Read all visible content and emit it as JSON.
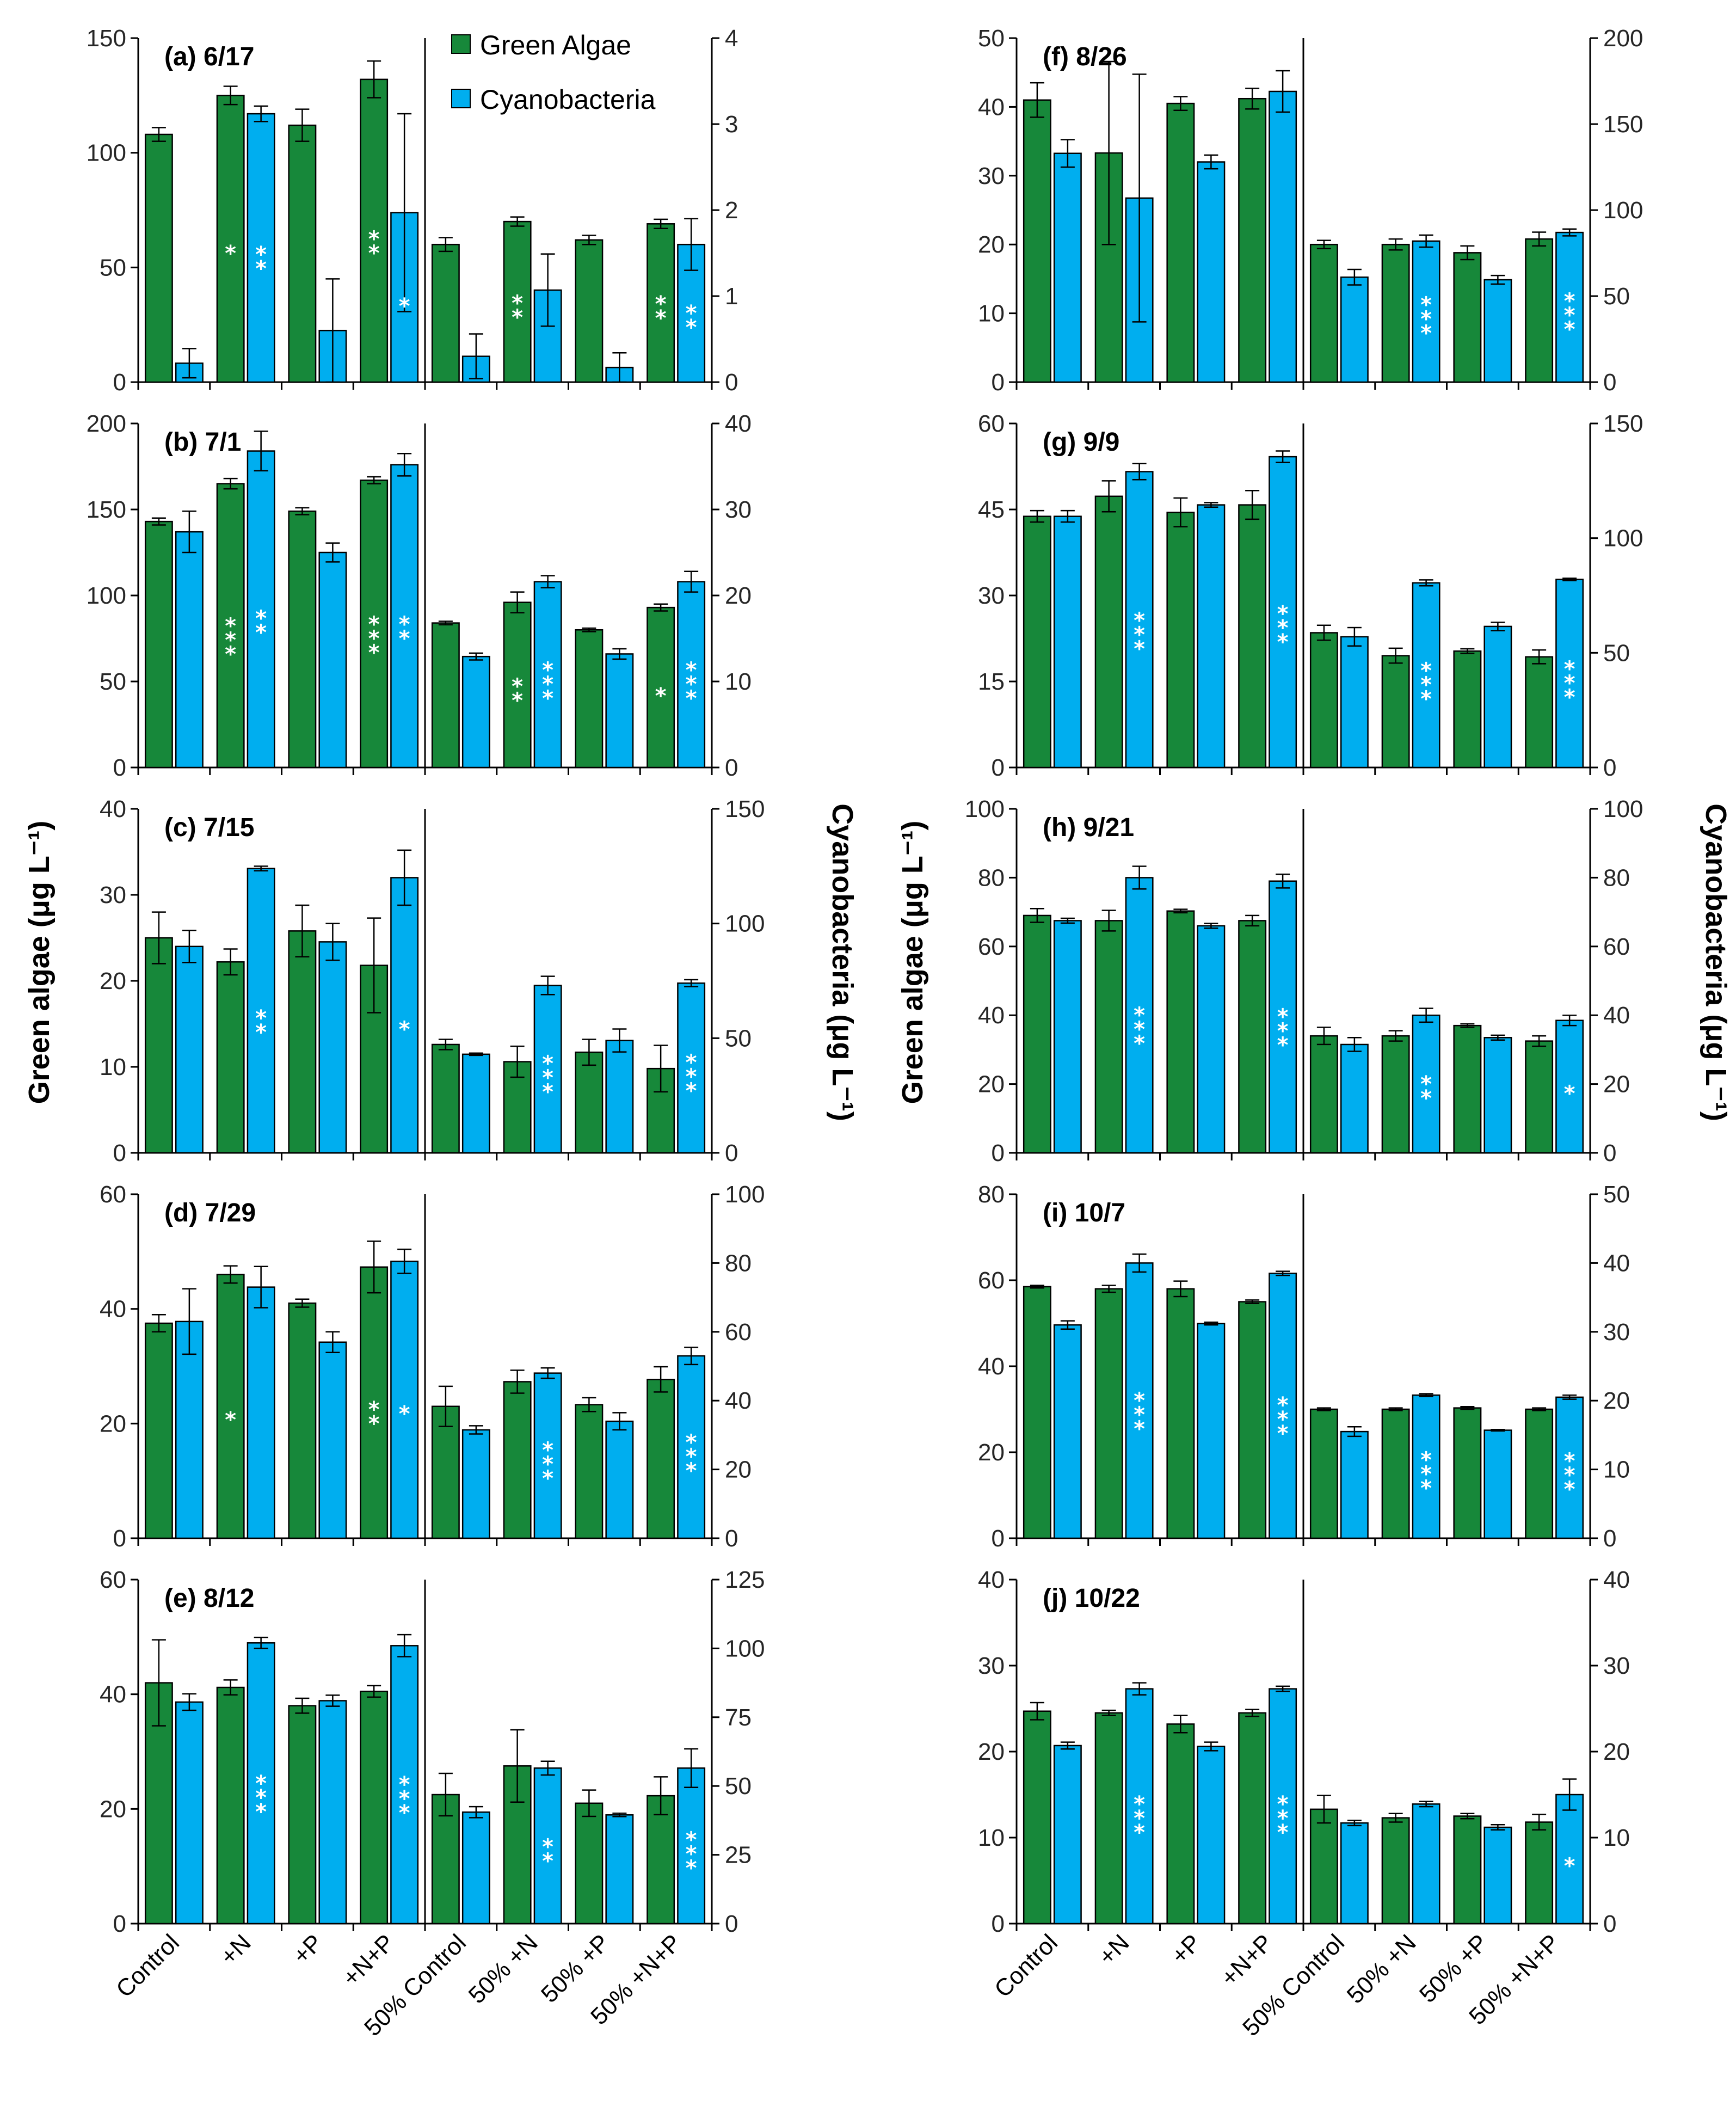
{
  "colors": {
    "green_algae": "#17883a",
    "cyanobacteria": "#00aeef",
    "axis": "#000000",
    "star": "#ffffff"
  },
  "labels": {
    "ylabel_left": "Green algae (μg L⁻¹)",
    "ylabel_right": "Cyanobacteria (μg L⁻¹)"
  },
  "legend": {
    "green": "Green Algae",
    "cyan": "Cyanobacteria"
  },
  "categories": [
    "Control",
    "+N",
    "+P",
    "+N+P",
    "50% Control",
    "50% +N",
    "50% +P",
    "50% +N+P"
  ],
  "chart_data": [
    {
      "type": "bar",
      "title": "(a) 6/17",
      "ylim_left": [
        0,
        150
      ],
      "yticks_left": [
        0,
        50,
        100,
        150
      ],
      "ylim_right": [
        0,
        4
      ],
      "yticks_right": [
        0,
        1,
        2,
        3,
        4
      ],
      "series": [
        {
          "name": "Green Algae",
          "axis": "left",
          "values": [
            108,
            125,
            112,
            132,
            60,
            70,
            62,
            69
          ],
          "errors": [
            3,
            4,
            7,
            8,
            3,
            2,
            2,
            2
          ],
          "stars": [
            "",
            "*",
            "",
            "**",
            "",
            "**",
            "",
            "**"
          ]
        },
        {
          "name": "Cyanobacteria",
          "axis": "right",
          "values": [
            0.22,
            3.12,
            0.6,
            1.97,
            0.3,
            1.07,
            0.17,
            1.6
          ],
          "errors": [
            0.17,
            0.09,
            0.6,
            1.15,
            0.26,
            0.42,
            0.17,
            0.3
          ],
          "stars": [
            "",
            "**",
            "",
            "*",
            "",
            "",
            "",
            "**"
          ]
        }
      ]
    },
    {
      "type": "bar",
      "title": "(b) 7/1",
      "ylim_left": [
        0,
        200
      ],
      "yticks_left": [
        0,
        50,
        100,
        150,
        200
      ],
      "ylim_right": [
        0,
        40
      ],
      "yticks_right": [
        0,
        10,
        20,
        30,
        40
      ],
      "series": [
        {
          "name": "Green Algae",
          "axis": "left",
          "values": [
            143,
            165,
            149,
            167,
            84,
            96,
            80,
            93
          ],
          "errors": [
            2,
            3,
            2,
            2,
            1,
            6,
            1,
            2
          ],
          "stars": [
            "",
            "***",
            "",
            "***",
            "",
            "**",
            "",
            "*"
          ]
        },
        {
          "name": "Cyanobacteria",
          "axis": "right",
          "values": [
            27.4,
            36.8,
            25,
            35.2,
            12.9,
            21.6,
            13.2,
            21.6
          ],
          "errors": [
            2.4,
            2.3,
            1.1,
            1.3,
            0.4,
            0.7,
            0.6,
            1.2
          ],
          "stars": [
            "",
            "**",
            "",
            "**",
            "",
            "***",
            "",
            "***"
          ]
        }
      ]
    },
    {
      "type": "bar",
      "title": "(c) 7/15",
      "ylim_left": [
        0,
        40
      ],
      "yticks_left": [
        0,
        10,
        20,
        30,
        40
      ],
      "ylim_right": [
        0,
        150
      ],
      "yticks_right": [
        0,
        50,
        100,
        150
      ],
      "series": [
        {
          "name": "Green Algae",
          "axis": "left",
          "values": [
            25,
            22.2,
            25.8,
            21.8,
            12.6,
            10.6,
            11.7,
            9.8
          ],
          "errors": [
            3,
            1.5,
            3,
            5.5,
            0.6,
            1.8,
            1.5,
            2.7
          ],
          "stars": [
            "",
            "",
            "",
            "",
            "",
            "",
            "",
            ""
          ]
        },
        {
          "name": "Cyanobacteria",
          "axis": "right",
          "values": [
            90,
            124,
            92,
            120,
            43,
            73,
            49,
            74
          ],
          "errors": [
            7,
            1,
            8,
            12,
            0.5,
            4,
            5,
            1.5
          ],
          "stars": [
            "",
            "**",
            "",
            "*",
            "",
            "***",
            "",
            "***"
          ]
        }
      ]
    },
    {
      "type": "bar",
      "title": "(d) 7/29",
      "ylim_left": [
        0,
        60
      ],
      "yticks_left": [
        0,
        20,
        40,
        60
      ],
      "ylim_right": [
        0,
        100
      ],
      "yticks_right": [
        0,
        20,
        40,
        60,
        80,
        100
      ],
      "series": [
        {
          "name": "Green Algae",
          "axis": "left",
          "values": [
            37.5,
            46,
            41,
            47.3,
            23,
            27.3,
            23.3,
            27.7
          ],
          "errors": [
            1.5,
            1.5,
            0.7,
            4.5,
            3.5,
            2,
            1.2,
            2.2
          ],
          "stars": [
            "",
            "*",
            "",
            "**",
            "",
            "",
            "",
            ""
          ]
        },
        {
          "name": "Cyanobacteria",
          "axis": "right",
          "values": [
            63,
            73,
            57,
            80.5,
            31.5,
            48,
            34,
            53
          ],
          "errors": [
            9.5,
            6,
            3,
            3.5,
            1.2,
            1.5,
            2.5,
            2.5
          ],
          "stars": [
            "",
            "",
            "",
            "*",
            "",
            "***",
            "",
            "***"
          ]
        }
      ]
    },
    {
      "type": "bar",
      "title": "(e) 8/12",
      "ylim_left": [
        0,
        60
      ],
      "yticks_left": [
        0,
        20,
        40,
        60
      ],
      "ylim_right": [
        0,
        125
      ],
      "yticks_right": [
        0,
        25,
        50,
        75,
        100,
        125
      ],
      "series": [
        {
          "name": "Green Algae",
          "axis": "left",
          "values": [
            42,
            41.2,
            38,
            40.5,
            22.5,
            27.5,
            21,
            22.3
          ],
          "errors": [
            7.5,
            1.3,
            1.3,
            1,
            3.7,
            6.3,
            2.3,
            3.3
          ],
          "stars": [
            "",
            "",
            "",
            "",
            "",
            "",
            "",
            ""
          ]
        },
        {
          "name": "Cyanobacteria",
          "axis": "right",
          "values": [
            80.5,
            102,
            81,
            101,
            40.5,
            56.5,
            39.5,
            56.5
          ],
          "errors": [
            3,
            2,
            2,
            4,
            2,
            2.5,
            0.6,
            7
          ],
          "stars": [
            "",
            "***",
            "",
            "***",
            "",
            "**",
            "",
            "***"
          ]
        }
      ]
    },
    {
      "type": "bar",
      "title": "(f) 8/26",
      "ylim_left": [
        0,
        50
      ],
      "yticks_left": [
        0,
        10,
        20,
        30,
        40,
        50
      ],
      "ylim_right": [
        0,
        200
      ],
      "yticks_right": [
        0,
        50,
        100,
        150,
        200
      ],
      "series": [
        {
          "name": "Green Algae",
          "axis": "left",
          "values": [
            41,
            33.3,
            40.5,
            41.2,
            20,
            20,
            18.8,
            20.8
          ],
          "errors": [
            2.5,
            13.3,
            1,
            1.5,
            0.6,
            0.8,
            1,
            1
          ],
          "stars": [
            "",
            "",
            "",
            "",
            "",
            "",
            "",
            ""
          ]
        },
        {
          "name": "Cyanobacteria",
          "axis": "right",
          "values": [
            133,
            107,
            128,
            169,
            61,
            82,
            59.5,
            87
          ],
          "errors": [
            8,
            72,
            4,
            12,
            4.5,
            3.5,
            2.5,
            2
          ],
          "stars": [
            "",
            "",
            "",
            "",
            "",
            "***",
            "",
            "***"
          ]
        }
      ]
    },
    {
      "type": "bar",
      "title": "(g) 9/9",
      "ylim_left": [
        0,
        60
      ],
      "yticks_left": [
        0,
        15,
        30,
        45,
        60
      ],
      "ylim_right": [
        0,
        150
      ],
      "yticks_right": [
        0,
        50,
        100,
        150
      ],
      "series": [
        {
          "name": "Green Algae",
          "axis": "left",
          "values": [
            43.8,
            47.3,
            44.5,
            45.8,
            23.5,
            19.5,
            20.3,
            19.3
          ],
          "errors": [
            1,
            2.7,
            2.5,
            2.5,
            1.3,
            1.3,
            0.4,
            1.2
          ],
          "stars": [
            "",
            "",
            "",
            "",
            "",
            "",
            "",
            ""
          ]
        },
        {
          "name": "Cyanobacteria",
          "axis": "right",
          "values": [
            109.5,
            129,
            114.5,
            135.5,
            57,
            80.5,
            61.5,
            82
          ],
          "errors": [
            2.5,
            3.5,
            1,
            2.5,
            4,
            1.3,
            1.8,
            0.5
          ],
          "stars": [
            "",
            "***",
            "",
            "***",
            "",
            "***",
            "",
            "***"
          ]
        }
      ]
    },
    {
      "type": "bar",
      "title": "(h) 9/21",
      "ylim_left": [
        0,
        100
      ],
      "yticks_left": [
        0,
        20,
        40,
        60,
        80,
        100
      ],
      "ylim_right": [
        0,
        100
      ],
      "yticks_right": [
        0,
        20,
        40,
        60,
        80,
        100
      ],
      "series": [
        {
          "name": "Green Algae",
          "axis": "left",
          "values": [
            69,
            67.5,
            70.3,
            67.5,
            34,
            34,
            37,
            32.5
          ],
          "errors": [
            2,
            3,
            0.5,
            1.5,
            2.5,
            1.5,
            0.5,
            1.5
          ],
          "stars": [
            "",
            "",
            "",
            "",
            "",
            "",
            "",
            ""
          ]
        },
        {
          "name": "Cyanobacteria",
          "axis": "right",
          "values": [
            67.5,
            80,
            66,
            79,
            31.5,
            40,
            33.5,
            38.5
          ],
          "errors": [
            0.7,
            3.3,
            0.7,
            2,
            2,
            2,
            0.7,
            1.5
          ],
          "stars": [
            "",
            "***",
            "",
            "***",
            "",
            "**",
            "",
            "*"
          ]
        }
      ]
    },
    {
      "type": "bar",
      "title": "(i) 10/7",
      "ylim_left": [
        0,
        80
      ],
      "yticks_left": [
        0,
        20,
        40,
        60,
        80
      ],
      "ylim_right": [
        0,
        50
      ],
      "yticks_right": [
        0,
        10,
        20,
        30,
        40,
        50
      ],
      "series": [
        {
          "name": "Green Algae",
          "axis": "left",
          "values": [
            58.5,
            58,
            58,
            55,
            30,
            30,
            30.3,
            30
          ],
          "errors": [
            0.3,
            0.8,
            1.8,
            0.4,
            0.3,
            0.3,
            0.3,
            0.3
          ],
          "stars": [
            "",
            "",
            "",
            "",
            "",
            "",
            "",
            ""
          ]
        },
        {
          "name": "Cyanobacteria",
          "axis": "right",
          "values": [
            31,
            40,
            31.2,
            38.5,
            15.5,
            20.8,
            15.7,
            20.5
          ],
          "errors": [
            0.6,
            1.3,
            0.2,
            0.3,
            0.7,
            0.2,
            0.1,
            0.3
          ],
          "stars": [
            "",
            "***",
            "",
            "***",
            "",
            "***",
            "",
            "***"
          ]
        }
      ]
    },
    {
      "type": "bar",
      "title": "(j) 10/22",
      "ylim_left": [
        0,
        40
      ],
      "yticks_left": [
        0,
        10,
        20,
        30,
        40
      ],
      "ylim_right": [
        0,
        40
      ],
      "yticks_right": [
        0,
        10,
        20,
        30,
        40
      ],
      "series": [
        {
          "name": "Green Algae",
          "axis": "left",
          "values": [
            24.7,
            24.5,
            23.2,
            24.5,
            13.3,
            12.3,
            12.5,
            11.8
          ],
          "errors": [
            1,
            0.3,
            1,
            0.4,
            1.6,
            0.5,
            0.3,
            0.9
          ],
          "stars": [
            "",
            "",
            "",
            "",
            "",
            "",
            "",
            ""
          ]
        },
        {
          "name": "Cyanobacteria",
          "axis": "right",
          "values": [
            20.7,
            27.3,
            20.6,
            27.3,
            11.7,
            13.9,
            11.2,
            15
          ],
          "errors": [
            0.4,
            0.7,
            0.5,
            0.3,
            0.3,
            0.3,
            0.3,
            1.8
          ],
          "stars": [
            "",
            "***",
            "",
            "***",
            "",
            "",
            "",
            "*"
          ]
        }
      ]
    }
  ]
}
